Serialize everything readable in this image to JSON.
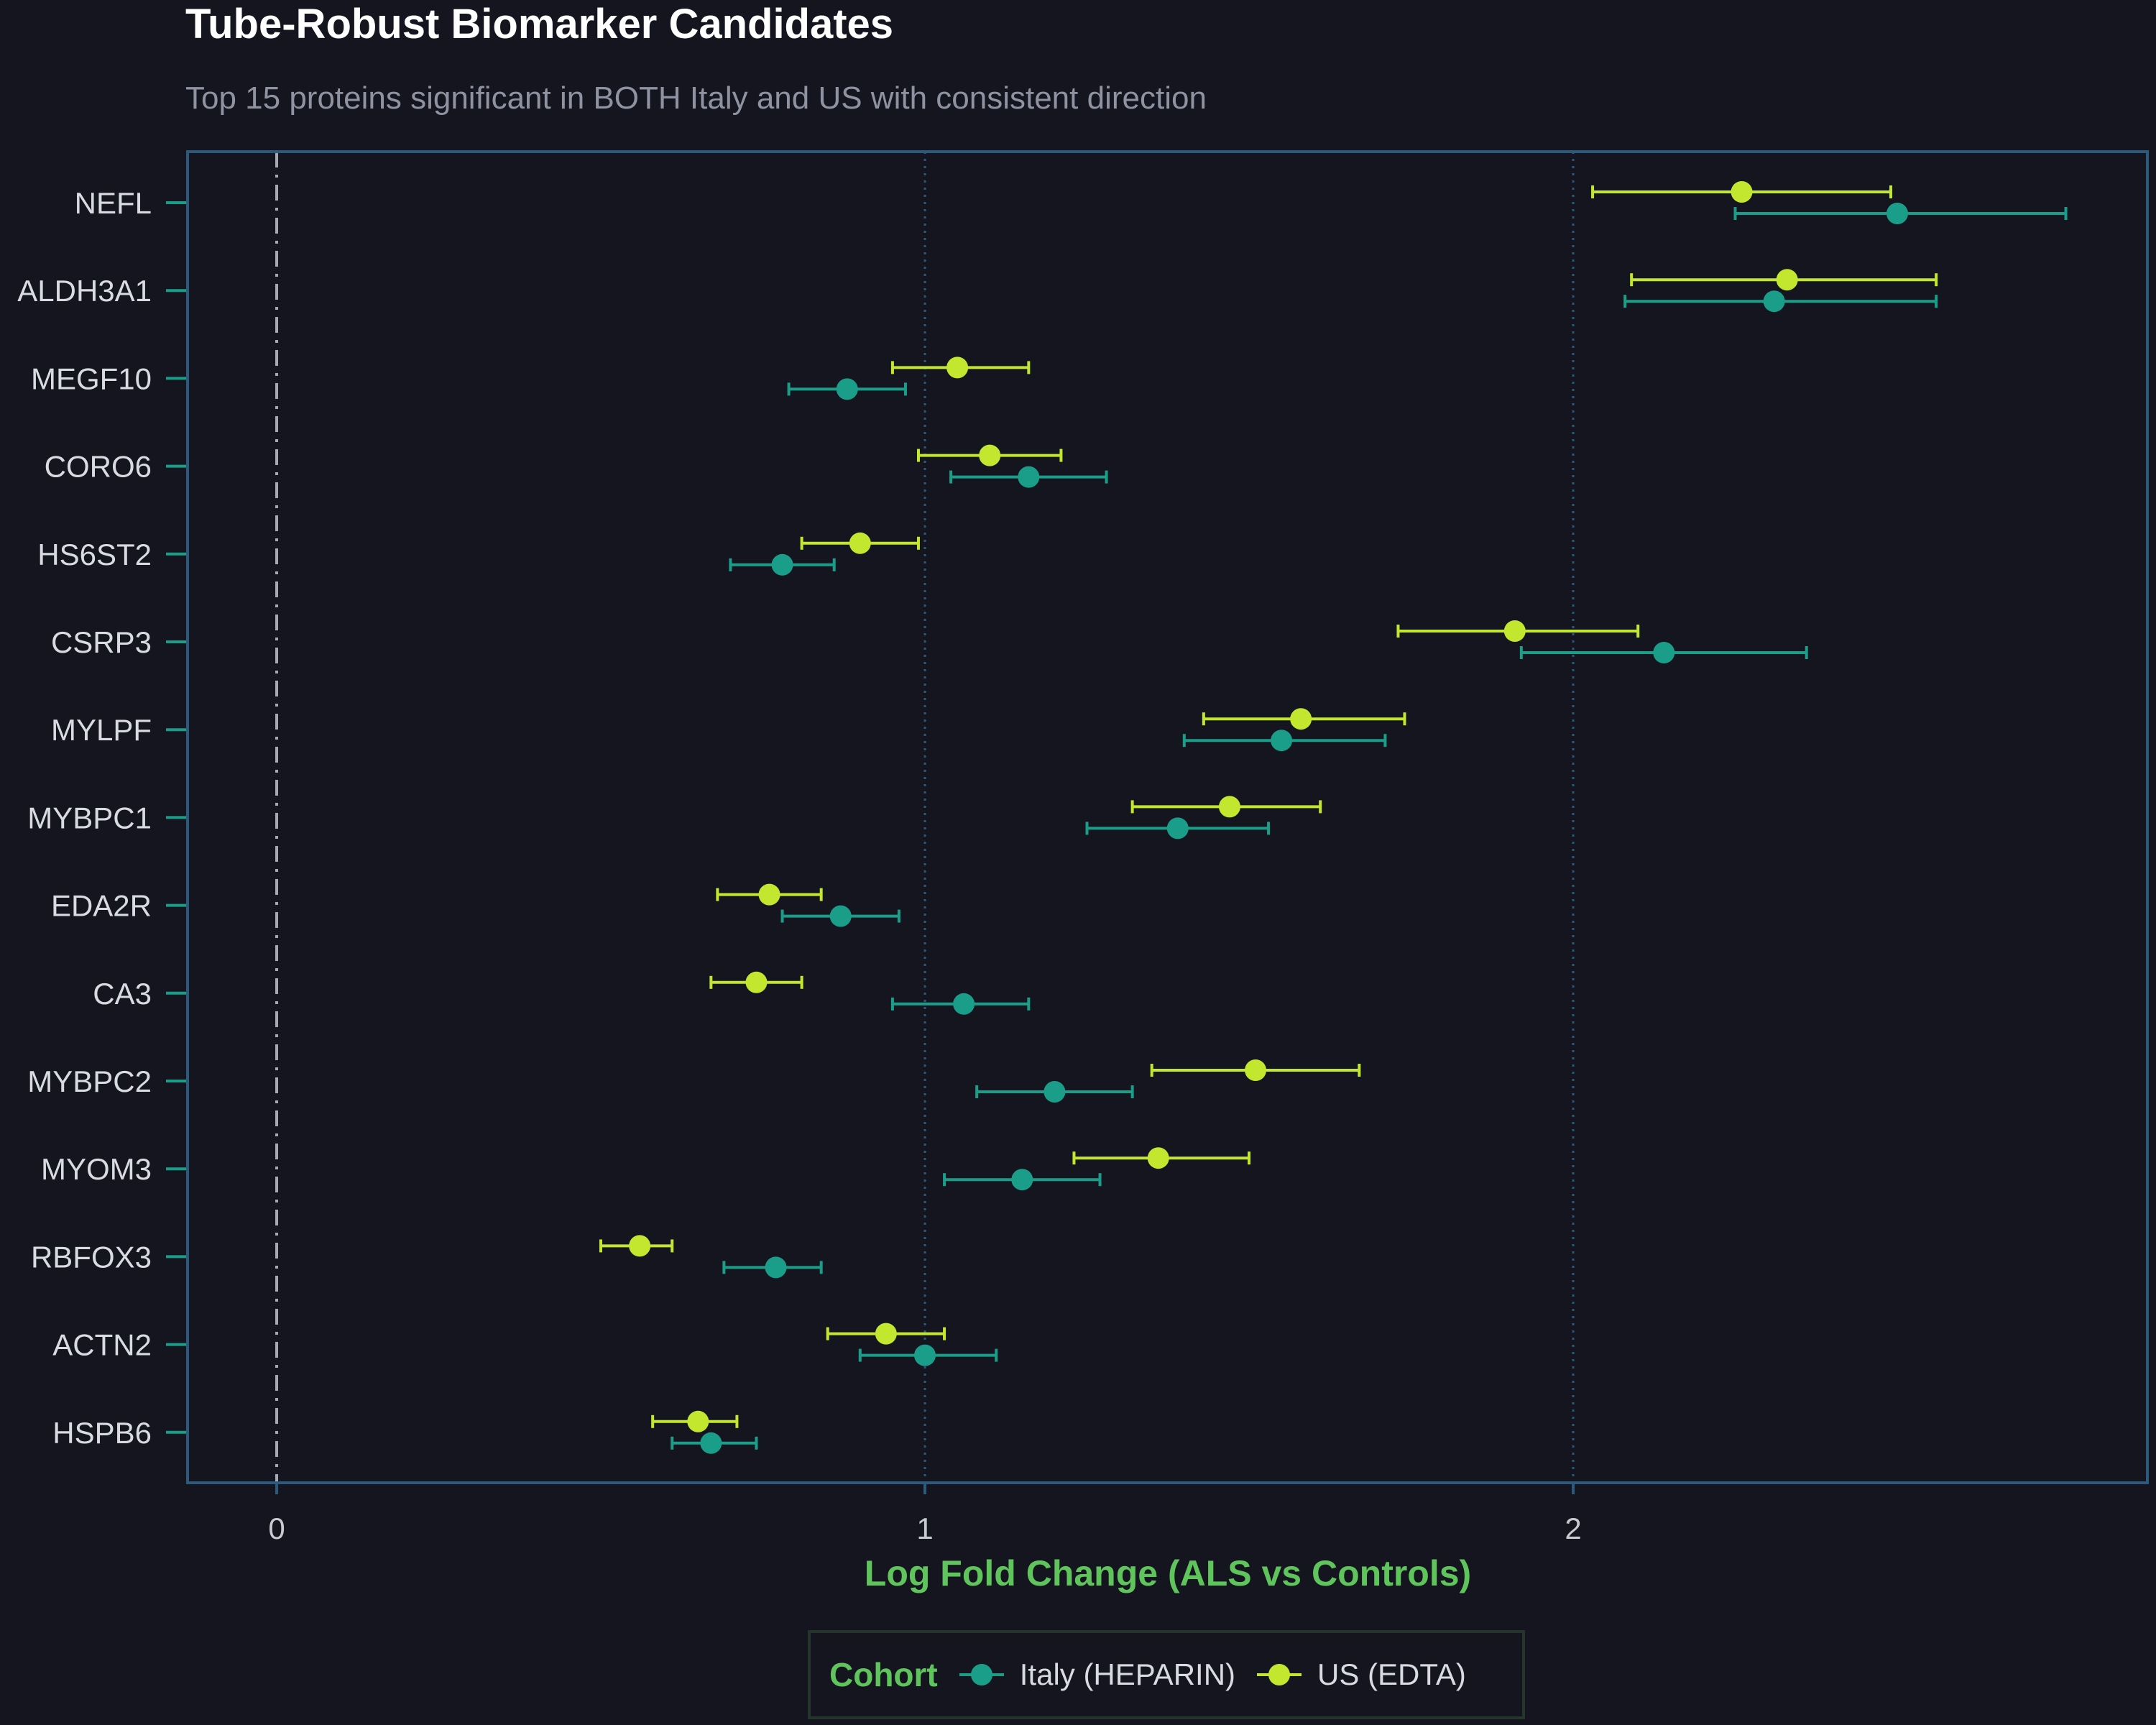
{
  "chart_data": {
    "type": "forest",
    "title": "Tube-Robust Biomarker Candidates",
    "subtitle": "Top 15 proteins significant in BOTH Italy and US with consistent direction",
    "xlabel": "Log Fold Change (ALS vs Controls)",
    "ylabel": "",
    "xlim": [
      -0.14,
      2.89
    ],
    "xticks": [
      0,
      1,
      2
    ],
    "reference_line": 0,
    "grid": "vertical dotted at x ticks",
    "legend": {
      "title": "Cohort",
      "position": "bottom",
      "entries": [
        "Italy (HEPARIN)",
        "US (EDTA)"
      ]
    },
    "categories": [
      "NEFL",
      "ALDH3A1",
      "MEGF10",
      "CORO6",
      "HS6ST2",
      "CSRP3",
      "MYLPF",
      "MYBPC1",
      "EDA2R",
      "CA3",
      "MYBPC2",
      "MYOM3",
      "RBFOX3",
      "ACTN2",
      "HSPB6"
    ],
    "series": [
      {
        "name": "Italy (HEPARIN)",
        "color": "#1a9e8a",
        "values": [
          2.5,
          2.31,
          0.88,
          1.16,
          0.78,
          2.14,
          1.55,
          1.39,
          0.87,
          1.06,
          1.2,
          1.15,
          0.77,
          1.0,
          0.67
        ],
        "lower": [
          2.25,
          2.08,
          0.79,
          1.04,
          0.7,
          1.92,
          1.4,
          1.25,
          0.78,
          0.95,
          1.08,
          1.03,
          0.69,
          0.9,
          0.61
        ],
        "upper": [
          2.76,
          2.56,
          0.97,
          1.28,
          0.86,
          2.36,
          1.71,
          1.53,
          0.96,
          1.16,
          1.32,
          1.27,
          0.84,
          1.11,
          0.74
        ]
      },
      {
        "name": "US (EDTA)",
        "color": "#c3e62e",
        "values": [
          2.26,
          2.33,
          1.05,
          1.1,
          0.9,
          1.91,
          1.58,
          1.47,
          0.76,
          0.74,
          1.51,
          1.36,
          0.56,
          0.94,
          0.65
        ],
        "lower": [
          2.03,
          2.09,
          0.95,
          0.99,
          0.81,
          1.73,
          1.43,
          1.32,
          0.68,
          0.67,
          1.35,
          1.23,
          0.5,
          0.85,
          0.58
        ],
        "upper": [
          2.49,
          2.56,
          1.16,
          1.21,
          0.99,
          2.1,
          1.74,
          1.61,
          0.84,
          0.81,
          1.67,
          1.5,
          0.61,
          1.03,
          0.71
        ]
      }
    ]
  },
  "colors": {
    "background": "#14151e",
    "panel_border": "#2b5a7c",
    "grid": "#2b5a7c",
    "reference_line": "#a6a9b3",
    "axis_label": "#5fc45c"
  }
}
